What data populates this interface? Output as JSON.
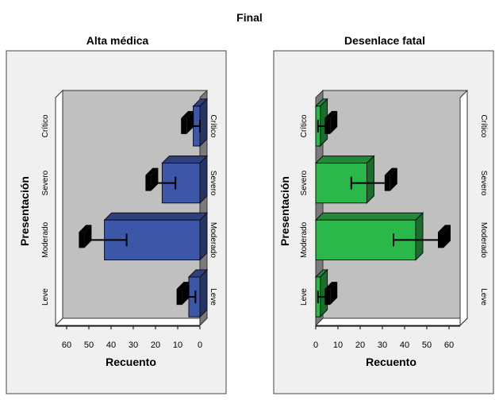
{
  "figure_title": "Final",
  "chart_data": [
    {
      "type": "bar",
      "orientation": "horizontal",
      "title": "Alta médica",
      "ylabel": "Presentación",
      "xlabel": "Recuento",
      "categories": [
        "Crítico",
        "Severo",
        "Moderado",
        "Leve"
      ],
      "values": [
        3,
        17,
        43,
        5
      ],
      "error_bars": [
        [
          0,
          6
        ],
        [
          11,
          22
        ],
        [
          33,
          52
        ],
        [
          2,
          8
        ]
      ],
      "x_reversed": true,
      "xlim": [
        0,
        65
      ],
      "xticks": [
        0,
        10,
        20,
        30,
        40,
        50,
        60
      ],
      "bar_color": "#3d57a8",
      "wall_color": "#c0c0c0"
    },
    {
      "type": "bar",
      "orientation": "horizontal",
      "title": "Desenlace fatal",
      "ylabel": "Presentación",
      "xlabel": "Recuento",
      "categories": [
        "Crítico",
        "Severo",
        "Moderado",
        "Leve"
      ],
      "values": [
        2,
        23,
        45,
        2
      ],
      "error_bars": [
        [
          1,
          4
        ],
        [
          16,
          31
        ],
        [
          35,
          55
        ],
        [
          1,
          4
        ]
      ],
      "x_reversed": false,
      "xlim": [
        0,
        65
      ],
      "xticks": [
        0,
        10,
        20,
        30,
        40,
        50,
        60
      ],
      "bar_color": "#2ab84a",
      "wall_color": "#c0c0c0"
    }
  ]
}
